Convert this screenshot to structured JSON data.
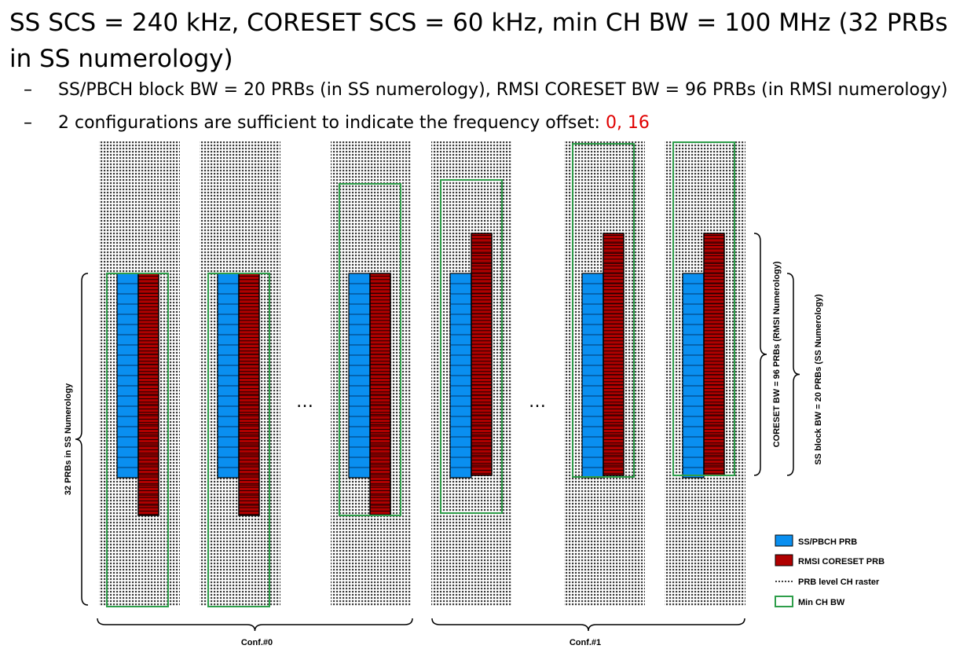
{
  "title": "SS SCS = 240 kHz, CORESET SCS = 60 kHz, min CH BW = 100 MHz (32 PRBs in SS numerology)",
  "bullets": [
    {
      "marker": "–",
      "text": "SS/PBCH block BW = 20 PRBs (in SS numerology), RMSI CORESET BW = 96 PRBs (in RMSI numerology)"
    },
    {
      "marker": "–",
      "text": "2 configurations are sufficient to indicate the frequency offset: ",
      "highlight": "0, 16"
    }
  ],
  "labels": {
    "left_brace": "32 PRBs in SS Numerology",
    "coreset_brace": "CORESET BW = 96 PRBs (RMSI Numerology)",
    "ss_brace": "SS block BW = 20 PRBs (SS Numerology)",
    "ellipsis": "…",
    "conf0": "Conf.#0",
    "conf1": "Conf.#1"
  },
  "legend": [
    {
      "label": "SS/PBCH PRB",
      "type": "ss"
    },
    {
      "label": "RMSI CORESET PRB",
      "type": "rmsi"
    },
    {
      "label": "PRB level CH raster",
      "type": "raster"
    },
    {
      "label": "Min CH BW",
      "type": "minbw"
    }
  ],
  "colors": {
    "ss_prb": "#0a8ff0",
    "rmsi_prb": "#b00000",
    "min_ch_bw": "#2e9e4a",
    "highlight": "#e00000"
  },
  "diagram": {
    "raster_count": 32,
    "ss_prb_count": 20,
    "rmsi_prb_count": 24,
    "configurations": [
      {
        "name": "Conf.#0",
        "ss_offset_prbs": 0,
        "rmsi_offset_prbs": 0
      },
      {
        "name": "Conf.#1",
        "ss_offset_prbs": 0,
        "rmsi_offset_prbs": -4
      }
    ]
  }
}
